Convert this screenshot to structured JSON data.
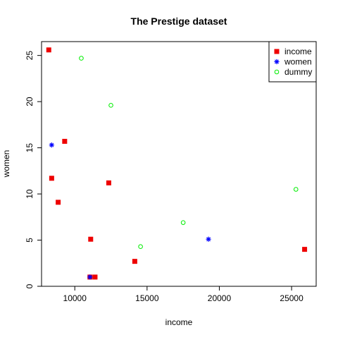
{
  "chart_data": {
    "type": "scatter",
    "title": "The Prestige dataset",
    "xlabel": "income",
    "ylabel": "women",
    "xlim": [
      7700,
      26700
    ],
    "ylim": [
      0,
      26.5
    ],
    "x_ticks": [
      10000,
      15000,
      20000,
      25000
    ],
    "y_ticks": [
      0,
      5,
      10,
      15,
      20,
      25
    ],
    "grid": false,
    "legend_position": "top-right",
    "series": [
      {
        "name": "income",
        "marker": "filled-square",
        "color": "#ee0000",
        "points": [
          {
            "x": 8200,
            "y": 25.6
          },
          {
            "x": 9300,
            "y": 15.7
          },
          {
            "x": 8400,
            "y": 11.7
          },
          {
            "x": 8850,
            "y": 9.1
          },
          {
            "x": 12350,
            "y": 11.2
          },
          {
            "x": 11100,
            "y": 5.1
          },
          {
            "x": 11050,
            "y": 1.0
          },
          {
            "x": 11400,
            "y": 1.0
          },
          {
            "x": 14150,
            "y": 2.7
          },
          {
            "x": 25900,
            "y": 4.0
          }
        ]
      },
      {
        "name": "women",
        "marker": "asterisk",
        "color": "#0000ff",
        "points": [
          {
            "x": 8400,
            "y": 15.3
          },
          {
            "x": 19250,
            "y": 5.1
          },
          {
            "x": 11050,
            "y": 1.0
          }
        ]
      },
      {
        "name": "dummy",
        "marker": "open-circle",
        "color": "#00ee00",
        "points": [
          {
            "x": 10450,
            "y": 24.7
          },
          {
            "x": 12500,
            "y": 19.6
          },
          {
            "x": 25300,
            "y": 10.5
          },
          {
            "x": 17500,
            "y": 6.9
          },
          {
            "x": 14550,
            "y": 4.3
          }
        ]
      }
    ]
  }
}
